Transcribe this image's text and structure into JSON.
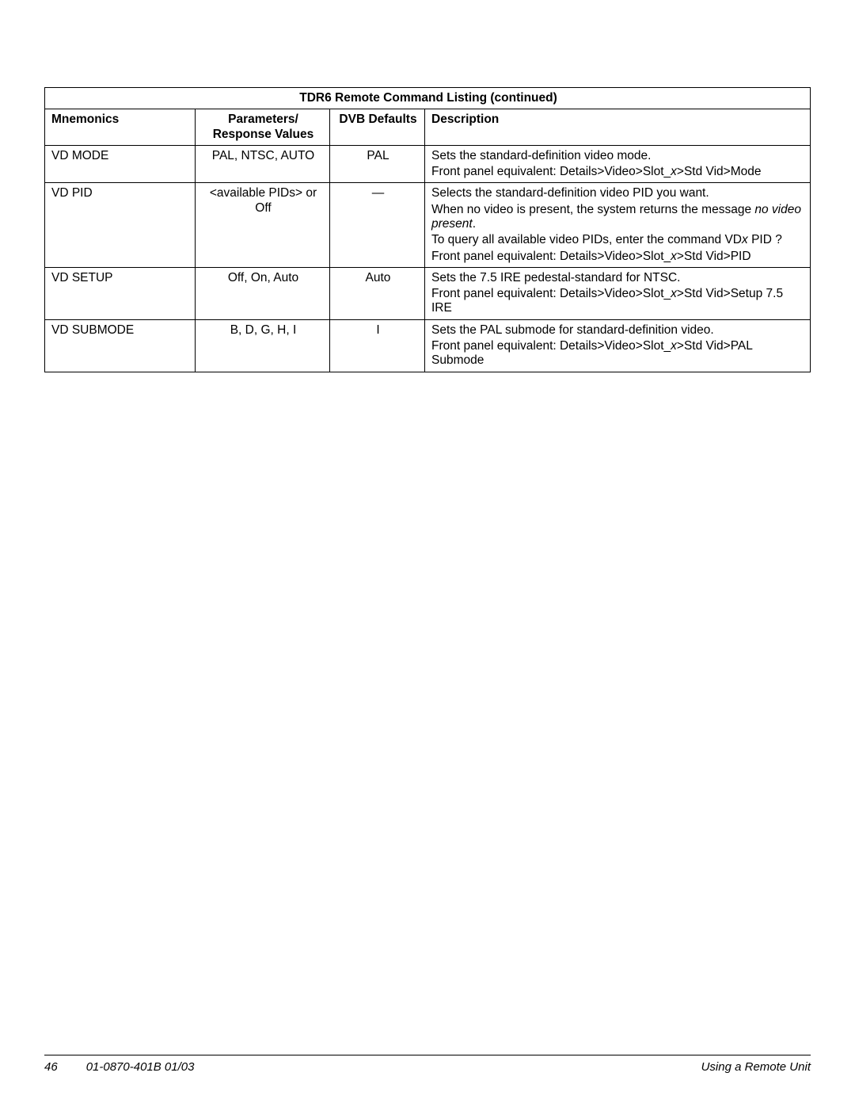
{
  "table": {
    "title": "TDR6 Remote Command Listing (continued)",
    "headers": {
      "mnemonics": "Mnemonics",
      "params_line1": "Parameters/",
      "params_line2": "Response Values",
      "defaults": "DVB Defaults",
      "description": "Description"
    },
    "rows": [
      {
        "mnemonic": "VD MODE",
        "params": "PAL, NTSC, AUTO",
        "default": "PAL",
        "desc": {
          "p1": "Sets the standard-definition video mode.",
          "p2a": "Front panel equivalent: Details>Video>Slot_",
          "p2x": "x",
          "p2b": ">Std Vid>Mode"
        }
      },
      {
        "mnemonic": "VD PID",
        "params": "<available PIDs> or Off",
        "default": "—",
        "desc": {
          "p1": "Selects the standard-definition video PID you want.",
          "p2a": "When no video is present, the system returns the message ",
          "p2i": "no video present",
          "p2b": ".",
          "p3a": "To query all available video PIDs, enter the command VD",
          "p3x": "x",
          "p3b": " PID ?",
          "p4a": "Front panel equivalent: Details>Video>Slot_",
          "p4x": "x",
          "p4b": ">Std Vid>PID"
        }
      },
      {
        "mnemonic": "VD SETUP",
        "params": "Off, On, Auto",
        "default": "Auto",
        "desc": {
          "p1": "Sets the 7.5 IRE pedestal-standard for NTSC.",
          "p2a": "Front panel equivalent: Details>Video>Slot_",
          "p2x": "x",
          "p2b": ">Std Vid>Setup 7.5 IRE"
        }
      },
      {
        "mnemonic": "VD SUBMODE",
        "params": "B, D, G, H, I",
        "default": "I",
        "desc": {
          "p1": "Sets the PAL submode for standard-definition video.",
          "p2a": "Front panel equivalent: Details>Video>Slot_",
          "p2x": "x",
          "p2b": ">Std Vid>PAL Submode"
        }
      }
    ]
  },
  "footer": {
    "page": "46",
    "docnum": "01-0870-401B 01/03",
    "section": "Using a Remote Unit"
  }
}
